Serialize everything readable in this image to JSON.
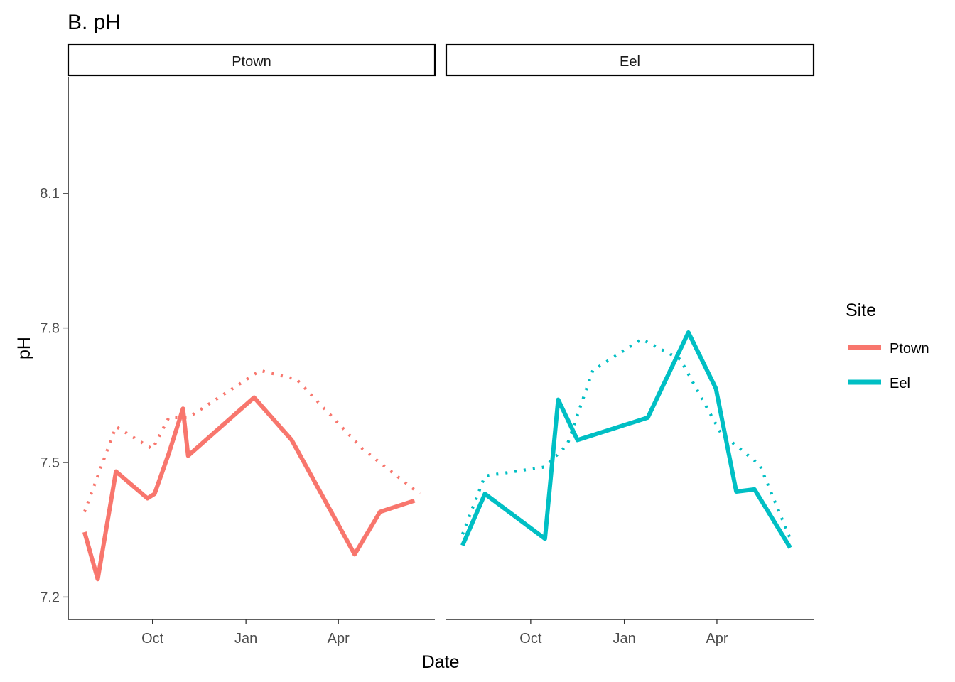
{
  "chart_data": {
    "type": "line",
    "title": "B. pH",
    "xlabel": "Date",
    "ylabel": "pH",
    "ylim": [
      7.15,
      8.36
    ],
    "yticks": [
      7.2,
      7.5,
      7.8,
      8.1
    ],
    "xlim": [
      "2019-07-10",
      "2020-07-05"
    ],
    "xticks": [
      {
        "date": "2019-10-01",
        "label": "Oct"
      },
      {
        "date": "2020-01-01",
        "label": "Jan"
      },
      {
        "date": "2020-04-01",
        "label": "Apr"
      }
    ],
    "grid": false,
    "legend": {
      "title": "Site",
      "position": "right",
      "entries": [
        {
          "label": "Ptown",
          "color": "#F8766D"
        },
        {
          "label": "Eel",
          "color": "#00BFC4"
        }
      ]
    },
    "panels": [
      {
        "strip": "Ptown",
        "color": "#F8766D",
        "solid": [
          [
            "2019-07-26",
            7.345
          ],
          [
            "2019-08-08",
            7.24
          ],
          [
            "2019-08-26",
            7.48
          ],
          [
            "2019-09-26",
            7.42
          ],
          [
            "2019-10-03",
            7.43
          ],
          [
            "2019-10-17",
            7.52
          ],
          [
            "2019-10-31",
            7.62
          ],
          [
            "2019-11-05",
            7.515
          ],
          [
            "2020-01-09",
            7.645
          ],
          [
            "2020-02-15",
            7.55
          ],
          [
            "2020-04-17",
            7.295
          ],
          [
            "2020-05-12",
            7.39
          ],
          [
            "2020-06-15",
            7.415
          ]
        ],
        "dotted": [
          [
            "2019-07-26",
            7.39
          ],
          [
            "2019-08-26",
            7.58
          ],
          [
            "2019-10-01",
            7.53
          ],
          [
            "2019-10-17",
            7.6
          ],
          [
            "2019-11-05",
            7.6
          ],
          [
            "2020-01-15",
            7.705
          ],
          [
            "2020-02-20",
            7.685
          ],
          [
            "2020-04-25",
            7.53
          ],
          [
            "2020-06-20",
            7.43
          ]
        ]
      },
      {
        "strip": "Eel",
        "color": "#00BFC4",
        "solid": [
          [
            "2019-07-26",
            7.315
          ],
          [
            "2019-08-17",
            7.43
          ],
          [
            "2019-10-15",
            7.33
          ],
          [
            "2019-10-28",
            7.64
          ],
          [
            "2019-11-16",
            7.55
          ],
          [
            "2020-01-24",
            7.6
          ],
          [
            "2020-03-04",
            7.79
          ],
          [
            "2020-03-31",
            7.665
          ],
          [
            "2020-04-20",
            7.435
          ],
          [
            "2020-05-08",
            7.44
          ],
          [
            "2020-06-12",
            7.31
          ]
        ],
        "dotted": [
          [
            "2019-07-26",
            7.34
          ],
          [
            "2019-08-17",
            7.47
          ],
          [
            "2019-10-15",
            7.49
          ],
          [
            "2019-11-06",
            7.54
          ],
          [
            "2019-12-01",
            7.705
          ],
          [
            "2020-01-18",
            7.775
          ],
          [
            "2020-02-25",
            7.73
          ],
          [
            "2020-04-05",
            7.565
          ],
          [
            "2020-05-13",
            7.495
          ],
          [
            "2020-06-12",
            7.33
          ]
        ]
      }
    ]
  }
}
